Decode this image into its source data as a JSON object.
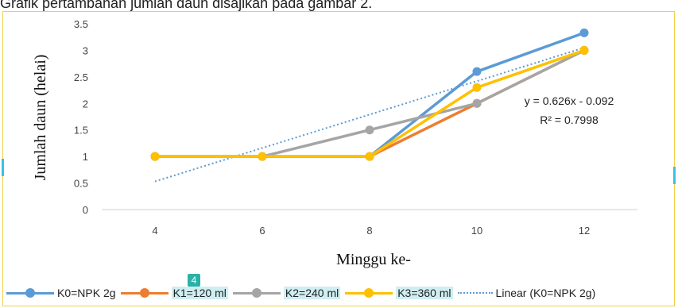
{
  "header_text": "Grafik pertambahan jumlah daun disajikan pada gambar 2.",
  "badge": "4",
  "chart_data": {
    "type": "line",
    "xlabel": "Minggu ke-",
    "ylabel": "Jumlah daun (helai)",
    "x": [
      4,
      6,
      8,
      10,
      12
    ],
    "xlim": [
      4,
      12
    ],
    "ylim": [
      0,
      3.5
    ],
    "yticks": [
      "0",
      "0.5",
      "1",
      "1.5",
      "2",
      "2.5",
      "3",
      "3.5"
    ],
    "xticks": [
      "4",
      "6",
      "8",
      "10",
      "12"
    ],
    "grid": false,
    "legend_position": "bottom",
    "series": [
      {
        "name": "K0=NPK 2g",
        "color": "#5b9bd5",
        "values": [
          1,
          1,
          1,
          2.6,
          3.33
        ],
        "highlight": false
      },
      {
        "name": "K1=120 ml",
        "color": "#ed7d31",
        "values": [
          1,
          1,
          1,
          2,
          3
        ],
        "highlight": true
      },
      {
        "name": "K2=240 ml",
        "color": "#a5a5a5",
        "values": [
          1,
          1,
          1.5,
          2,
          3
        ],
        "highlight": true
      },
      {
        "name": "K3=360 ml",
        "color": "#ffc000",
        "values": [
          1,
          1,
          1,
          2.3,
          3
        ],
        "highlight": true
      }
    ],
    "trendline": {
      "name": "Linear (K0=NPK 2g)",
      "color": "#5b9bd5",
      "equation": "y = 0.626x - 0.092",
      "r_squared": "R² = 0.7998",
      "start": [
        4,
        0.53
      ],
      "end": [
        12,
        3.05
      ]
    }
  }
}
